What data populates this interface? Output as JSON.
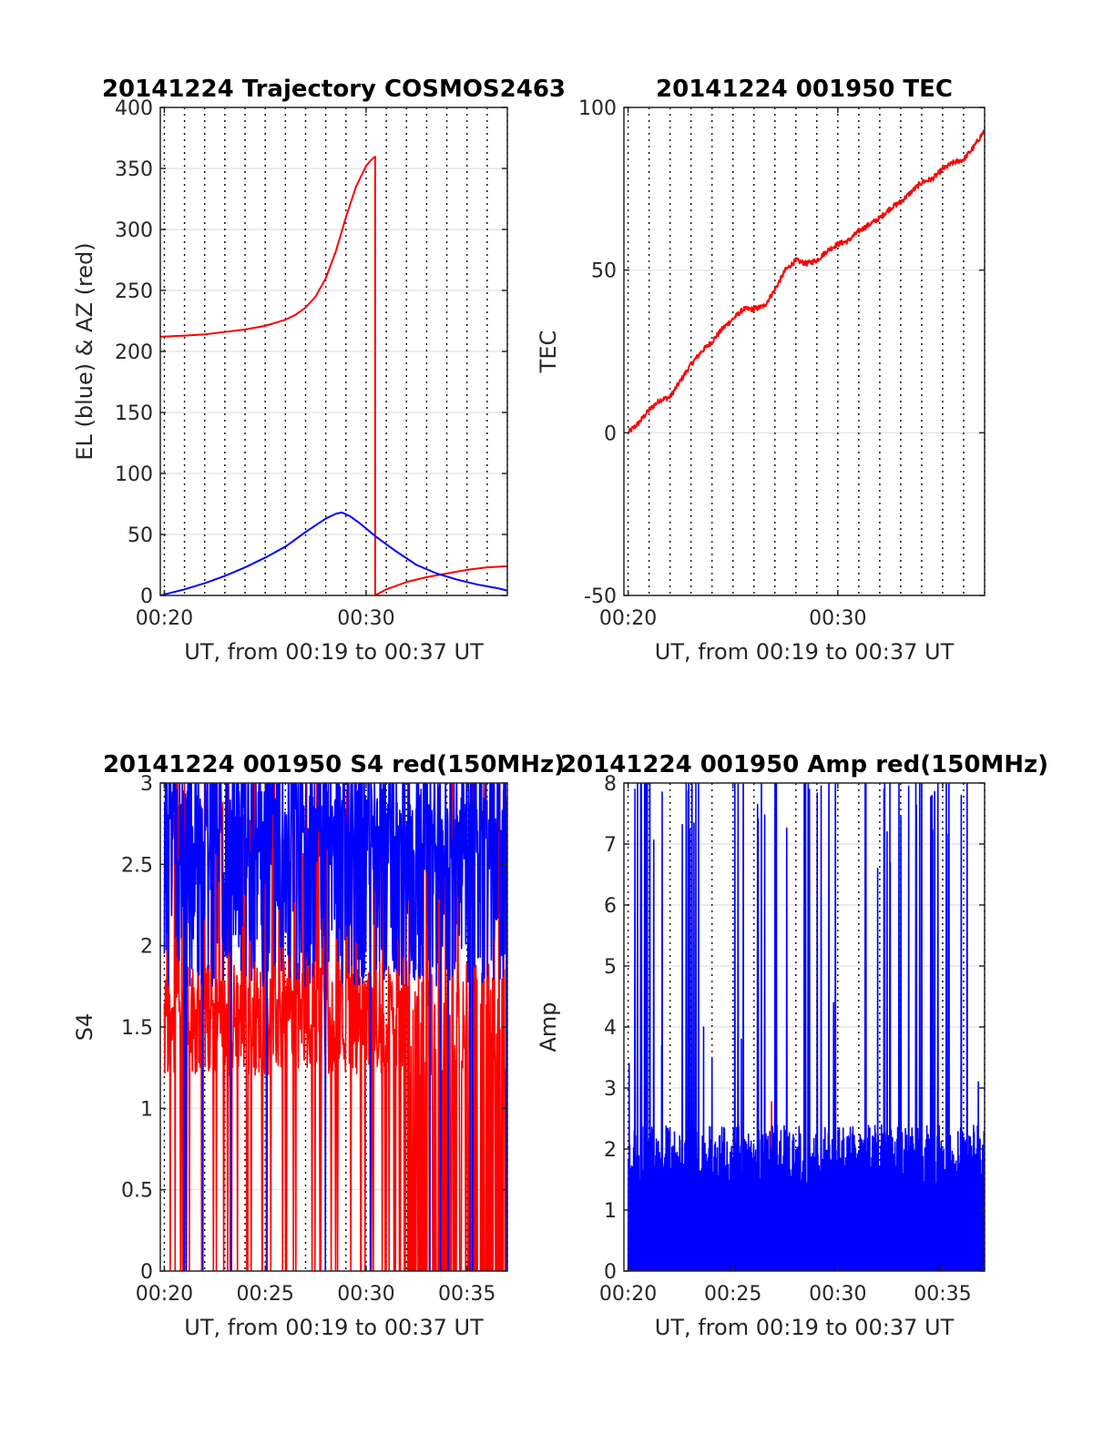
{
  "chart_data": [
    {
      "id": "traj",
      "type": "line",
      "title": "20141224 Trajectory COSMOS2463",
      "xlabel": "UT, from 00:19 to 00:37 UT",
      "ylabel": "EL (blue) & AZ (red)",
      "xlim": [
        19.8,
        37.0
      ],
      "ylim": [
        0,
        400
      ],
      "xticks": [
        {
          "v": 20,
          "label": "00:20"
        },
        {
          "v": 30,
          "label": "00:30"
        }
      ],
      "yticks": [
        0,
        50,
        100,
        150,
        200,
        250,
        300,
        350,
        400
      ],
      "y_gridlines": [
        0,
        50,
        100,
        150,
        200,
        250,
        300,
        350,
        400
      ],
      "x_dotted_gridlines_every_min": 1,
      "series": [
        {
          "color": "#ff0000",
          "x": [
            19.8,
            21,
            22,
            23,
            24,
            25,
            26,
            26.5,
            27,
            27.5,
            28,
            28.5,
            29,
            29.5,
            30,
            30.2,
            30.45
          ],
          "y": [
            212,
            213,
            214,
            216,
            218,
            221,
            226,
            230,
            236,
            245,
            260,
            282,
            310,
            335,
            352,
            356,
            360
          ]
        },
        {
          "color": "#ff0000",
          "x": [
            30.45,
            30.45
          ],
          "y": [
            360,
            0
          ]
        },
        {
          "color": "#ff0000",
          "x": [
            30.45,
            31,
            32,
            33,
            34,
            35,
            36,
            37.0
          ],
          "y": [
            0,
            5,
            11,
            15,
            18,
            21,
            23,
            24
          ]
        },
        {
          "color": "#0000ff",
          "x": [
            19.8,
            21,
            22,
            23,
            24,
            25,
            26,
            27,
            28,
            28.5,
            28.8,
            29.2,
            29.7,
            30.5,
            31.5,
            32.5,
            33.5,
            34.5,
            35.5,
            36.5,
            37.0
          ],
          "y": [
            0,
            5,
            10,
            16,
            23,
            31,
            40,
            52,
            63,
            67,
            68,
            65,
            59,
            48,
            36,
            25,
            18,
            13,
            9,
            6,
            4
          ]
        }
      ]
    },
    {
      "id": "tec",
      "type": "line",
      "title": "20141224 001950 TEC",
      "xlabel": "UT, from 00:19 to 00:37 UT",
      "ylabel": "TEC",
      "xlim": [
        19.8,
        37.0
      ],
      "ylim": [
        -50,
        100
      ],
      "xticks": [
        {
          "v": 20,
          "label": "00:20"
        },
        {
          "v": 30,
          "label": "00:30"
        }
      ],
      "yticks": [
        -50,
        0,
        50,
        100
      ],
      "y_gridlines": [
        -50,
        0,
        50,
        100
      ],
      "x_dotted_gridlines_every_min": 1,
      "series": [
        {
          "color": "#ff0000",
          "noise": 0.8,
          "x": [
            20.0,
            20.5,
            21.0,
            21.5,
            22.0,
            22.5,
            23.0,
            23.5,
            24.0,
            24.5,
            25.0,
            25.5,
            26.0,
            26.5,
            27.0,
            27.5,
            28.0,
            28.5,
            29.0,
            29.5,
            30.0,
            30.5,
            31.0,
            31.5,
            32.0,
            32.5,
            33.0,
            33.5,
            34.0,
            34.5,
            35.0,
            35.5,
            36.0,
            36.5,
            37.0
          ],
          "y": [
            0,
            3,
            7,
            10,
            11,
            16,
            21,
            25,
            28,
            32,
            35,
            38,
            38,
            39,
            44,
            50,
            53,
            52,
            53,
            56,
            58,
            59,
            62,
            64,
            66,
            69,
            71,
            74,
            77,
            78,
            81,
            83,
            84,
            88,
            93
          ]
        }
      ]
    },
    {
      "id": "s4",
      "type": "line",
      "title": "20141224 001950 S4 red(150MHz)",
      "xlabel": "UT, from 00:19 to 00:37 UT",
      "ylabel": "S4",
      "xlim": [
        19.8,
        37.0
      ],
      "ylim": [
        0,
        3
      ],
      "xticks": [
        {
          "v": 20,
          "label": "00:20"
        },
        {
          "v": 25,
          "label": "00:25"
        },
        {
          "v": 30,
          "label": "00:30"
        },
        {
          "v": 35,
          "label": "00:35"
        }
      ],
      "yticks": [
        0,
        0.5,
        1,
        1.5,
        2,
        2.5,
        3
      ],
      "ytick_labels": [
        "0",
        "0.5",
        "1",
        "1.5",
        "2",
        "2.5",
        "3"
      ],
      "y_gridlines": [
        0,
        0.5,
        1,
        1.5,
        2,
        2.5,
        3
      ],
      "x_dotted_gridlines_every_min": 1,
      "series": [
        {
          "color": "#ff0000",
          "style": "noise",
          "x0": 20.0,
          "x1": 37.0,
          "n": 700,
          "base": 1.55,
          "spread": 0.35,
          "spike_prob": 0.12,
          "drop_prob": 0.1,
          "dense_from": 32.0
        },
        {
          "color": "#0000ff",
          "style": "noise",
          "x0": 20.0,
          "x1": 37.0,
          "n": 900,
          "base": 2.35,
          "spread": 0.6,
          "spike_prob": 0.35,
          "drop_prob": 0.02,
          "dense_from": 99
        }
      ]
    },
    {
      "id": "amp",
      "type": "line",
      "title": "20141224 001950 Amp red(150MHz)",
      "xlabel": "UT, from 00:19 to 00:37 UT",
      "ylabel": "Amp",
      "xlim": [
        19.8,
        37.0
      ],
      "ylim": [
        0,
        8
      ],
      "xticks": [
        {
          "v": 20,
          "label": "00:20"
        },
        {
          "v": 25,
          "label": "00:25"
        },
        {
          "v": 30,
          "label": "00:30"
        },
        {
          "v": 35,
          "label": "00:35"
        }
      ],
      "yticks": [
        0,
        1,
        2,
        3,
        4,
        5,
        6,
        7,
        8
      ],
      "y_gridlines": [
        0,
        1,
        2,
        3,
        4,
        5,
        6,
        7,
        8
      ],
      "x_dotted_gridlines_every_min": 1,
      "peaks": [
        {
          "x": 20.05,
          "y": 3.4
        },
        {
          "x": 21.6,
          "y": 3.7
        },
        {
          "x": 23.6,
          "y": 4.0
        },
        {
          "x": 24.0,
          "y": 3.5
        },
        {
          "x": 25.4,
          "y": 3.8
        },
        {
          "x": 29.8,
          "y": 4.4
        },
        {
          "x": 31.9,
          "y": 6.6
        },
        {
          "x": 32.2,
          "y": 7.9
        },
        {
          "x": 32.35,
          "y": 7.2
        },
        {
          "x": 32.5,
          "y": 6.7
        },
        {
          "x": 36.7,
          "y": 3.1
        }
      ],
      "series": [
        {
          "color": "#ff0000",
          "style": "noise",
          "x0": 26.8,
          "x1": 27.0,
          "n": 6,
          "base": 2.0,
          "spread": 0.8,
          "spike_prob": 0.0,
          "drop_prob": 0.0,
          "dense_from": 99
        },
        {
          "color": "#0000ff",
          "style": "noise",
          "x0": 20.0,
          "x1": 37.0,
          "n": 1100,
          "base": 1.9,
          "spread": 0.5,
          "spike_prob": 0.1,
          "drop_prob": 0.0,
          "dense_from": 99
        }
      ]
    }
  ]
}
